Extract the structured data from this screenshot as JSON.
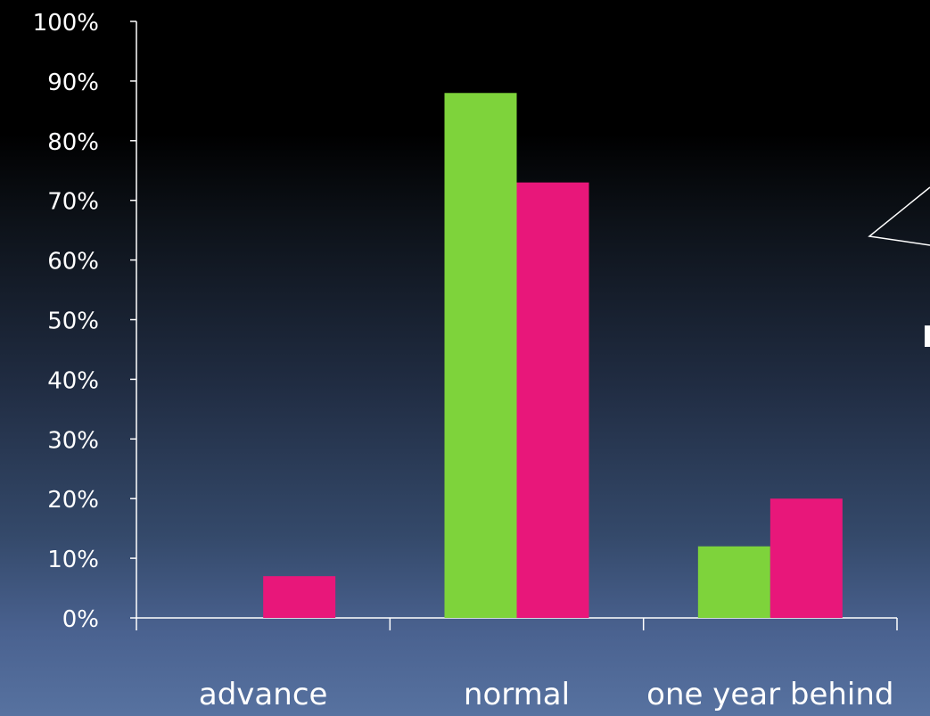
{
  "chart_data": {
    "type": "bar",
    "title": "",
    "xlabel": "",
    "ylabel": "",
    "categories": [
      "advance",
      "normal",
      "one year behind"
    ],
    "series": [
      {
        "color": "#7ed33b",
        "values": [
          0,
          88,
          12
        ]
      },
      {
        "color": "#e8177a",
        "values": [
          7,
          73,
          20
        ]
      }
    ],
    "ylim": [
      0,
      100
    ],
    "yticks": [
      0,
      10,
      20,
      30,
      40,
      50,
      60,
      70,
      80,
      90,
      100
    ],
    "ytick_labels": [
      "0%",
      "10%",
      "20%",
      "30%",
      "40%",
      "50%",
      "60%",
      "70%",
      "80%",
      "90%",
      "100%"
    ],
    "grid": false,
    "legend": "none"
  }
}
